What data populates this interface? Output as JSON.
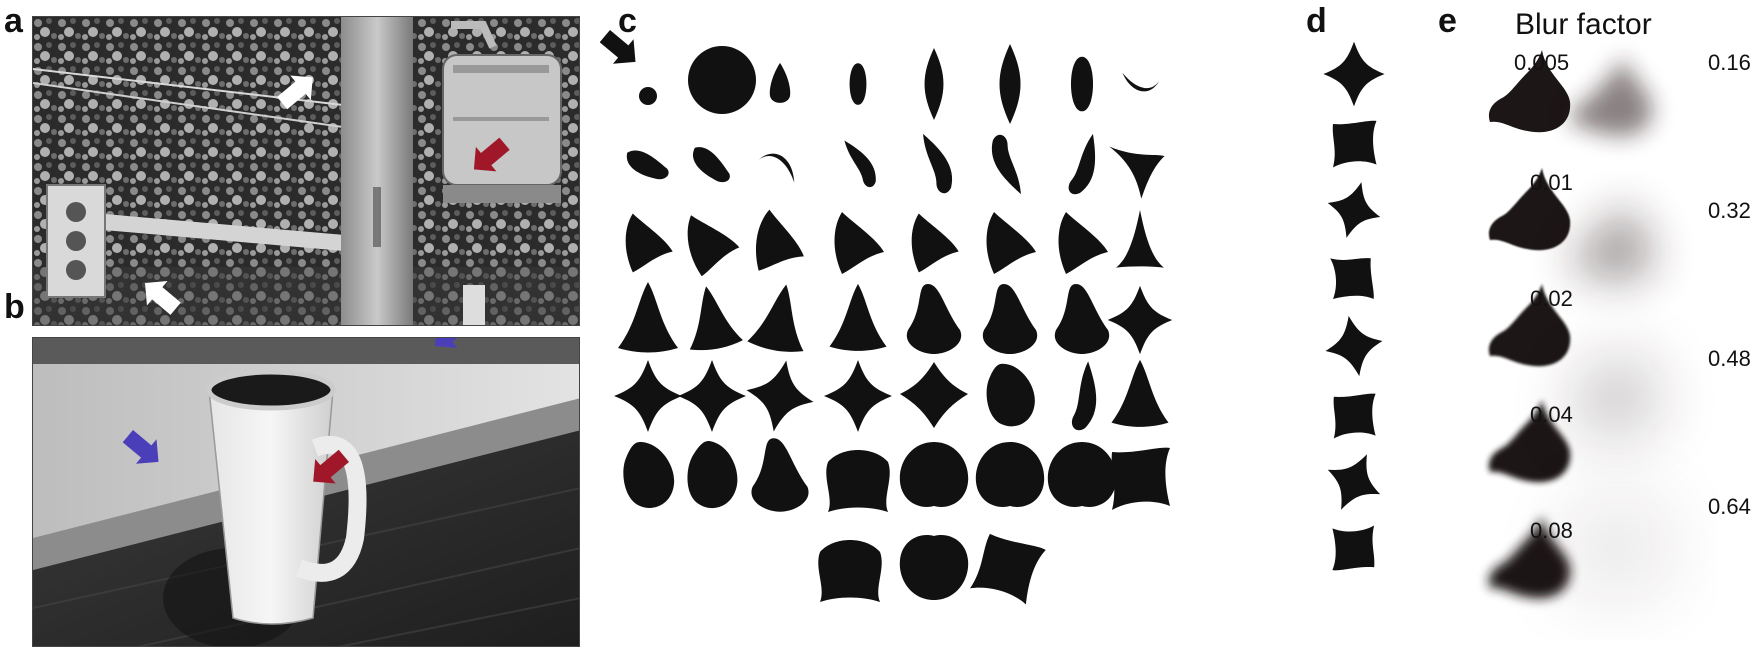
{
  "panels": {
    "a": "a",
    "b": "b",
    "c": "c",
    "d": "d",
    "e": "e"
  },
  "blur": {
    "title": "Blur factor",
    "values": [
      "0.005",
      "0.01",
      "0.02",
      "0.04",
      "0.08",
      "0.16",
      "0.32",
      "0.48",
      "0.64"
    ]
  },
  "colors": {
    "shape_fill": "#111111",
    "arrow_white": "#ffffff",
    "arrow_red": "#a0172a",
    "arrow_blue": "#4a3fb8",
    "arrow_black": "#111111"
  }
}
